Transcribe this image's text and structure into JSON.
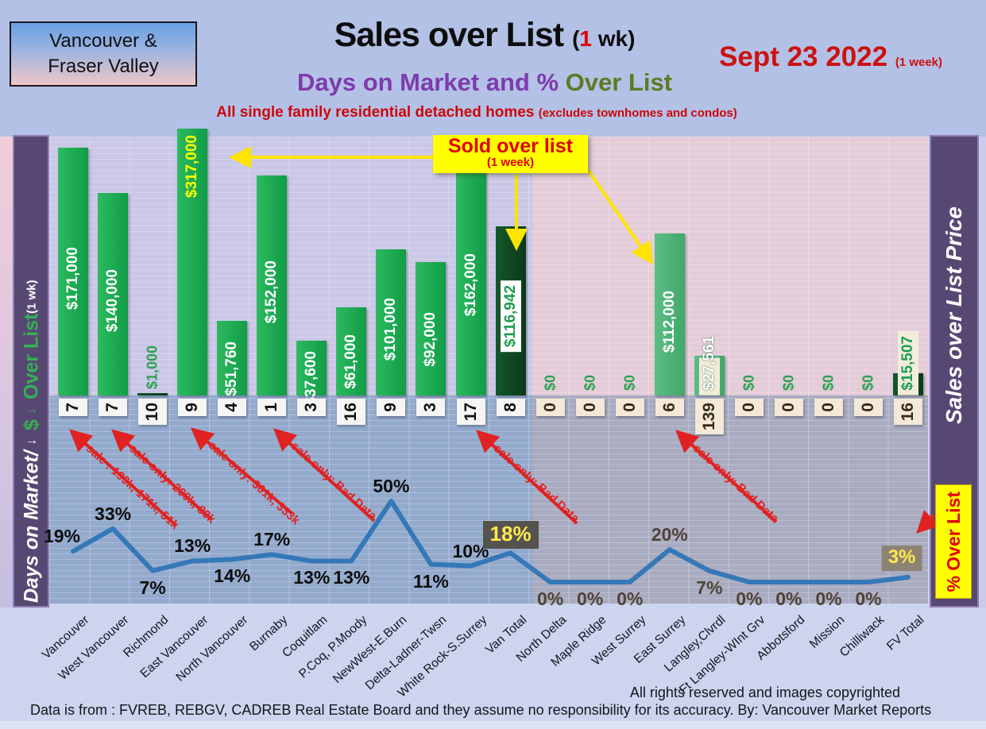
{
  "header": {
    "region_box_line1": "Vancouver &",
    "region_box_line2": "Fraser Valley",
    "title_main": "Sales over List ",
    "title_paren_open": "(",
    "title_one": "1",
    "title_paren_rest": " wk)",
    "subtitle_purple": "Days on Market and % ",
    "subtitle_green": "Over List",
    "tagline_main": "All single family residential detached homes ",
    "tagline_paren": "(excludes townhomes and condos)",
    "date_text": "Sept 23  2022 ",
    "date_paren": "(1 week)"
  },
  "sidebar_left": {
    "part1": "Days on Market/ ",
    "arrow1": "→",
    "part2": " $ ",
    "arrow2": "→",
    "part3": " Over List ",
    "part4": "(1 wk)"
  },
  "sidebar_right": {
    "label": "Sales over List Price",
    "pct_box_label": "% Over List"
  },
  "callout": {
    "line1": "Sold over list",
    "line2": "(1 week)"
  },
  "red_annotations": [
    {
      "text": "3 sale : 199k, 171k, 51k"
    },
    {
      "text": "2 sale only: 200k, 80k"
    },
    {
      "text": "2 sale only: 301k, 333k"
    },
    {
      "text": "1 sale only: Bad Data"
    },
    {
      "text": "1 sale only: Bad Data"
    },
    {
      "text": "1 sale only: Bad Data"
    }
  ],
  "footer": {
    "rights": "All rights reserved and  images copyrighted",
    "source": "Data is from : FVREB, REBGV, CADREB Real Estate Board and they assume no responsibility for its accuracy. By: Vancouver Market Reports"
  },
  "colors": {
    "van_bar_green": "#17a94f",
    "fv_bar_green": "#4cb578",
    "total_bar_dark_green": "#0e4a22",
    "line_blue": "#2e75b6",
    "accent_yellow": "#ffff00",
    "accent_red": "#cc0808",
    "purple_sidebar": "#574873",
    "subtitle_purple": "#7d3bad",
    "subtitle_green": "#5e7a23",
    "highlight_box_dark": "#55534d",
    "highlight_box_tan": "#8d8373"
  },
  "chart_data": {
    "type": "bar",
    "title": "Sales over List (1 wk) — Days on Market and % Over List",
    "subtitle": "All single family residential detached homes (excludes townhomes and condos)",
    "date": "Sept 23 2022 (1 week)",
    "categories": [
      "Vancouver",
      "West Vancouver",
      "Richmond",
      "East Vancouver",
      "North Vancouver",
      "Burnaby",
      "Coquitlam",
      "P.Coq, P.Moody",
      "NewWest-E.Burn",
      "Delta-Ladner-Twsn",
      "White Rock-S.Surrey",
      "Van Total",
      "North Delta",
      "Maple Ridge",
      "West Surrey",
      "East Surrey",
      "Langley,Clvrdl",
      "Ft Langley-WInt Grv",
      "Abbotsford",
      "Mission",
      "Chilliwack",
      "FV Total"
    ],
    "series": [
      {
        "name": "$ Over List (bar)",
        "values": [
          171000,
          140000,
          1000,
          317000,
          51760,
          152000,
          37600,
          61000,
          101000,
          92000,
          162000,
          116942,
          0,
          0,
          0,
          112000,
          27561,
          0,
          0,
          0,
          0,
          15507
        ]
      },
      {
        "name": "Days on Market",
        "values": [
          7,
          7,
          10,
          9,
          4,
          1,
          3,
          16,
          9,
          3,
          17,
          8,
          0,
          0,
          0,
          6,
          139,
          0,
          0,
          0,
          0,
          16
        ]
      },
      {
        "name": "% Over List (line)",
        "values": [
          19,
          33,
          7,
          13,
          14,
          17,
          13,
          13,
          50,
          11,
          10,
          18,
          0,
          0,
          0,
          20,
          7,
          0,
          0,
          0,
          0,
          3
        ]
      }
    ],
    "bar_labels": [
      "$171,000",
      "$140,000",
      "$1,000",
      "$317,000",
      "$51,760",
      "$152,000",
      "$37,600",
      "$61,000",
      "$101,000",
      "$92,000",
      "$162,000",
      "$116,942",
      "$0",
      "$0",
      "$0",
      "$112,000",
      "$27,561",
      "$0",
      "$0",
      "$0",
      "$0",
      "$15,507"
    ],
    "day_labels": [
      "7",
      "7",
      "10",
      "9",
      "4",
      "1",
      "3",
      "16",
      "9",
      "3",
      "17",
      "8",
      "0",
      "0",
      "0",
      "6",
      "139",
      "0",
      "0",
      "0",
      "0",
      "16"
    ],
    "pct_labels": [
      "19%",
      "33%",
      "7%",
      "13%",
      "14%",
      "17%",
      "13%",
      "13%",
      "50%",
      "11%",
      "10%",
      "18%",
      "0%",
      "0%",
      "0%",
      "20%",
      "7%",
      "0%",
      "0%",
      "0%",
      "0%",
      "3%"
    ],
    "ylim_bar": [
      0,
      317000
    ],
    "ylim_line_pct": [
      0,
      50
    ],
    "grid": "fine horizontal minor gridlines",
    "legend_position": "none",
    "totals_highlighted": [
      "Van Total",
      "FV Total"
    ]
  }
}
